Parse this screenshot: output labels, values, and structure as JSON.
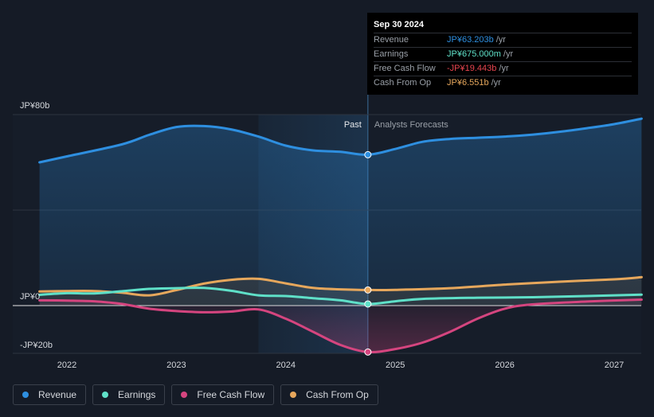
{
  "chart_data": {
    "type": "line",
    "title": "",
    "xlabel": "",
    "ylabel": "",
    "y_unit": "JP¥ billions",
    "ylim": [
      -20,
      80
    ],
    "y_ticks": [
      {
        "value": 80,
        "label": "JP¥80b"
      },
      {
        "value": 0,
        "label": "JP¥0"
      },
      {
        "value": -20,
        "label": "-JP¥20b"
      }
    ],
    "xlim": [
      2021.55,
      2027.25
    ],
    "x_ticks": [
      {
        "value": 2022,
        "label": "2022"
      },
      {
        "value": 2023,
        "label": "2023"
      },
      {
        "value": 2024,
        "label": "2024"
      },
      {
        "value": 2025,
        "label": "2025"
      },
      {
        "value": 2026,
        "label": "2026"
      },
      {
        "value": 2027,
        "label": "2027"
      }
    ],
    "past_start": 2023.75,
    "divider_x": 2024.75,
    "past_label": "Past",
    "forecast_label": "Analysts Forecasts",
    "series": [
      {
        "name": "Revenue",
        "color": "#2e8fe0",
        "fill": true,
        "points": [
          [
            2021.75,
            60
          ],
          [
            2022.0,
            62.5
          ],
          [
            2022.5,
            67.5
          ],
          [
            2022.75,
            71.5
          ],
          [
            2023.0,
            74.8
          ],
          [
            2023.25,
            75.2
          ],
          [
            2023.5,
            73.8
          ],
          [
            2023.75,
            70.8
          ],
          [
            2024.0,
            67
          ],
          [
            2024.25,
            65
          ],
          [
            2024.5,
            64.4
          ],
          [
            2024.75,
            63.2
          ],
          [
            2025.0,
            65.6
          ],
          [
            2025.25,
            68.6
          ],
          [
            2025.5,
            69.8
          ],
          [
            2025.75,
            70.3
          ],
          [
            2026.0,
            70.8
          ],
          [
            2026.25,
            71.6
          ],
          [
            2026.5,
            72.8
          ],
          [
            2026.75,
            74.3
          ],
          [
            2027.0,
            76
          ],
          [
            2027.25,
            78.3
          ]
        ]
      },
      {
        "name": "Cash From Op",
        "color": "#e6a75c",
        "fill": false,
        "points": [
          [
            2021.75,
            5.9
          ],
          [
            2022.0,
            6.1
          ],
          [
            2022.25,
            6.1
          ],
          [
            2022.5,
            5.4
          ],
          [
            2022.75,
            4.3
          ],
          [
            2023.0,
            6.5
          ],
          [
            2023.25,
            9.2
          ],
          [
            2023.5,
            10.8
          ],
          [
            2023.75,
            11.2
          ],
          [
            2024.0,
            9.3
          ],
          [
            2024.25,
            7.4
          ],
          [
            2024.5,
            6.8
          ],
          [
            2024.75,
            6.55
          ],
          [
            2025.0,
            6.6
          ],
          [
            2025.5,
            7.3
          ],
          [
            2026.0,
            8.8
          ],
          [
            2026.5,
            10
          ],
          [
            2027.0,
            11
          ],
          [
            2027.25,
            11.9
          ]
        ]
      },
      {
        "name": "Earnings",
        "color": "#5fe0c8",
        "fill": false,
        "points": [
          [
            2021.75,
            4.5
          ],
          [
            2022.0,
            5.2
          ],
          [
            2022.25,
            5.1
          ],
          [
            2022.5,
            6
          ],
          [
            2022.75,
            7
          ],
          [
            2023.0,
            7.3
          ],
          [
            2023.25,
            7.4
          ],
          [
            2023.5,
            6.2
          ],
          [
            2023.75,
            4.3
          ],
          [
            2024.0,
            4
          ],
          [
            2024.25,
            3.1
          ],
          [
            2024.5,
            2.2
          ],
          [
            2024.75,
            0.675
          ],
          [
            2025.0,
            1.8
          ],
          [
            2025.25,
            2.8
          ],
          [
            2025.75,
            3.3
          ],
          [
            2026.25,
            3.5
          ],
          [
            2026.75,
            4
          ],
          [
            2027.25,
            4.6
          ]
        ]
      },
      {
        "name": "Free Cash Flow",
        "color": "#d5457f",
        "fill": false,
        "points": [
          [
            2021.75,
            2.2
          ],
          [
            2022.0,
            2.1
          ],
          [
            2022.25,
            1.8
          ],
          [
            2022.5,
            0.7
          ],
          [
            2022.75,
            -1.3
          ],
          [
            2023.0,
            -2.3
          ],
          [
            2023.25,
            -2.8
          ],
          [
            2023.5,
            -2.5
          ],
          [
            2023.75,
            -1.6
          ],
          [
            2024.0,
            -5.5
          ],
          [
            2024.25,
            -11
          ],
          [
            2024.5,
            -16.5
          ],
          [
            2024.75,
            -19.443
          ],
          [
            2025.0,
            -18.2
          ],
          [
            2025.25,
            -15.5
          ],
          [
            2025.5,
            -11
          ],
          [
            2025.75,
            -5.5
          ],
          [
            2026.0,
            -1.3
          ],
          [
            2026.25,
            0.5
          ],
          [
            2026.75,
            1.7
          ],
          [
            2027.25,
            2.5
          ]
        ]
      }
    ],
    "highlight": {
      "x": 2024.75
    }
  },
  "tooltip": {
    "date": "Sep 30 2024",
    "rows": [
      {
        "label": "Revenue",
        "value": "JP¥63.203b",
        "unit": "/yr",
        "color": "#2e8fe0"
      },
      {
        "label": "Earnings",
        "value": "JP¥675.000m",
        "unit": "/yr",
        "color": "#5fe0c8"
      },
      {
        "label": "Free Cash Flow",
        "value": "-JP¥19.443b",
        "unit": "/yr",
        "color": "#e8454f"
      },
      {
        "label": "Cash From Op",
        "value": "JP¥6.551b",
        "unit": "/yr",
        "color": "#e6a75c"
      }
    ]
  },
  "legend": [
    {
      "label": "Revenue",
      "color": "#2e8fe0"
    },
    {
      "label": "Earnings",
      "color": "#5fe0c8"
    },
    {
      "label": "Free Cash Flow",
      "color": "#d5457f"
    },
    {
      "label": "Cash From Op",
      "color": "#e6a75c"
    }
  ]
}
